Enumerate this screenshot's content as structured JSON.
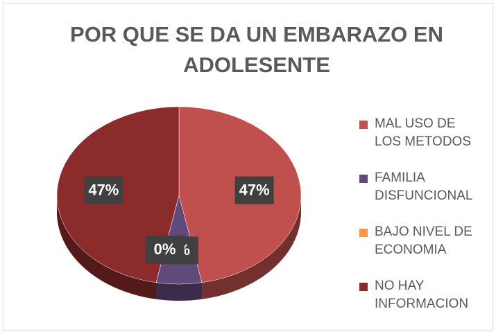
{
  "chart_data": {
    "type": "pie",
    "title": "POR QUE SE DA UN EMBARAZO EN ADOLESENTE",
    "categories": [
      "MAL USO DE LOS METODOS",
      "FAMILIA DISFUNCIONAL",
      "BAJO NIVEL DE ECONOMIA",
      "NO HAY INFORMACION"
    ],
    "values": [
      47,
      6,
      0,
      47
    ],
    "value_labels": [
      "47%",
      "6%",
      "0%",
      "47%"
    ],
    "colors": [
      "#c0504d",
      "#604a7b",
      "#f79646",
      "#8c2b2b"
    ],
    "legend": "right"
  }
}
